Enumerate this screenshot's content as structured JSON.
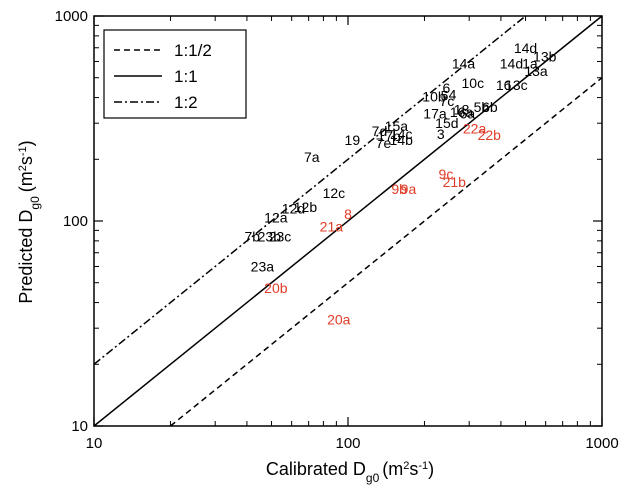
{
  "chart_data": {
    "type": "scatter",
    "xscale": "log",
    "yscale": "log",
    "xlim": [
      10,
      1000
    ],
    "ylim": [
      10,
      1000
    ],
    "x_ticks": [
      "10",
      "100",
      "1000"
    ],
    "y_ticks": [
      "10",
      "100",
      "1000"
    ],
    "xlabel_parts": {
      "main": "Calibrated D",
      "sub": "g0",
      "units": "(m",
      "sup": "2",
      "tail": "s",
      "sup2": "-1",
      "close": ")"
    },
    "ylabel_parts": {
      "main": "Predicted D",
      "sub": "g0",
      "units": "(m",
      "sup": "2",
      "tail": "s",
      "sup2": "-1",
      "close": ")"
    },
    "grid": false,
    "legend_position": "top-left",
    "reference_lines": [
      {
        "label": "1:1/2",
        "ratio": 0.5,
        "style": "dashed"
      },
      {
        "label": "1:1",
        "ratio": 1,
        "style": "solid"
      },
      {
        "label": "1:2",
        "ratio": 2,
        "style": "dash-dot"
      }
    ],
    "colors": {
      "black": "#000000",
      "red": "#e03c28"
    },
    "points": [
      {
        "label": "14d",
        "x": 500,
        "y": 700,
        "color": "black"
      },
      {
        "label": "13b",
        "x": 595,
        "y": 635,
        "color": "black"
      },
      {
        "label": "14a",
        "x": 285,
        "y": 585,
        "color": "black"
      },
      {
        "label": "14d",
        "x": 440,
        "y": 585,
        "color": "black"
      },
      {
        "label": "1a",
        "x": 520,
        "y": 585,
        "color": "black"
      },
      {
        "label": "13a",
        "x": 550,
        "y": 540,
        "color": "black"
      },
      {
        "label": "10c",
        "x": 310,
        "y": 470,
        "color": "black"
      },
      {
        "label": "16",
        "x": 410,
        "y": 460,
        "color": "black"
      },
      {
        "label": "13c",
        "x": 460,
        "y": 460,
        "color": "black"
      },
      {
        "label": "6",
        "x": 244,
        "y": 445,
        "color": "black"
      },
      {
        "label": "10b",
        "x": 218,
        "y": 405,
        "color": "black"
      },
      {
        "label": "5",
        "x": 240,
        "y": 410,
        "color": "black"
      },
      {
        "label": "4",
        "x": 258,
        "y": 415,
        "color": "black"
      },
      {
        "label": "7c",
        "x": 245,
        "y": 385,
        "color": "black"
      },
      {
        "label": "17a",
        "x": 220,
        "y": 335,
        "color": "black"
      },
      {
        "label": "18",
        "x": 280,
        "y": 350,
        "color": "black"
      },
      {
        "label": "6a",
        "x": 295,
        "y": 335,
        "color": "black"
      },
      {
        "label": "5b",
        "x": 335,
        "y": 360,
        "color": "black"
      },
      {
        "label": "6b",
        "x": 362,
        "y": 360,
        "color": "black"
      },
      {
        "label": "16a",
        "x": 280,
        "y": 340,
        "color": "black"
      },
      {
        "label": "15d",
        "x": 245,
        "y": 300,
        "color": "black"
      },
      {
        "label": "15a",
        "x": 155,
        "y": 290,
        "color": "black"
      },
      {
        "label": "3",
        "x": 232,
        "y": 265,
        "color": "black"
      },
      {
        "label": "7d",
        "x": 133,
        "y": 275,
        "color": "black"
      },
      {
        "label": "17b",
        "x": 145,
        "y": 260,
        "color": "black"
      },
      {
        "label": "14c",
        "x": 162,
        "y": 265,
        "color": "black"
      },
      {
        "label": "7e",
        "x": 138,
        "y": 240,
        "color": "black"
      },
      {
        "label": "14b",
        "x": 162,
        "y": 248,
        "color": "black"
      },
      {
        "label": "19",
        "x": 104,
        "y": 248,
        "color": "black"
      },
      {
        "label": "7a",
        "x": 72,
        "y": 205,
        "color": "black"
      },
      {
        "label": "12c",
        "x": 88,
        "y": 137,
        "color": "black"
      },
      {
        "label": "12b",
        "x": 68,
        "y": 117,
        "color": "black"
      },
      {
        "label": "12d",
        "x": 61,
        "y": 115,
        "color": "black"
      },
      {
        "label": "12a",
        "x": 52,
        "y": 104,
        "color": "black"
      },
      {
        "label": "7b",
        "x": 42,
        "y": 84,
        "color": "black"
      },
      {
        "label": "23b",
        "x": 49,
        "y": 84,
        "color": "black"
      },
      {
        "label": "23c",
        "x": 54,
        "y": 84,
        "color": "black"
      },
      {
        "label": "23a",
        "x": 46,
        "y": 60,
        "color": "black"
      },
      {
        "label": "22a",
        "x": 315,
        "y": 282,
        "color": "red"
      },
      {
        "label": "22b",
        "x": 360,
        "y": 262,
        "color": "red"
      },
      {
        "label": "9c",
        "x": 243,
        "y": 170,
        "color": "red"
      },
      {
        "label": "21b",
        "x": 262,
        "y": 155,
        "color": "red"
      },
      {
        "label": "9b",
        "x": 159,
        "y": 143,
        "color": "red"
      },
      {
        "label": "9a",
        "x": 173,
        "y": 143,
        "color": "red"
      },
      {
        "label": "8",
        "x": 100,
        "y": 108,
        "color": "red"
      },
      {
        "label": "21a",
        "x": 86,
        "y": 94,
        "color": "red"
      },
      {
        "label": "20b",
        "x": 52,
        "y": 47,
        "color": "red"
      },
      {
        "label": "20a",
        "x": 92,
        "y": 33,
        "color": "red"
      }
    ]
  }
}
